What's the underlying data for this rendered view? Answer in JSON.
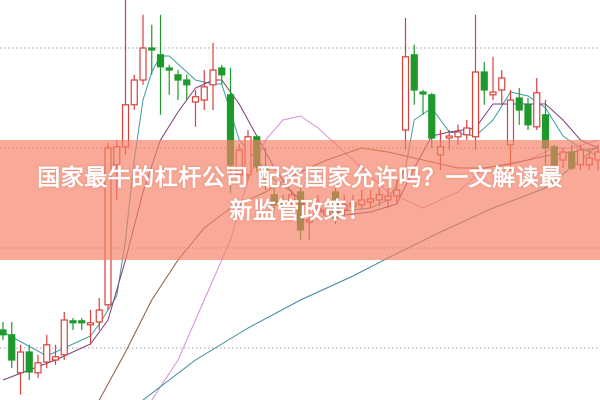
{
  "title": {
    "line1": "国家最牛的杠杆公司 配资国家允许吗？一文解读最",
    "line2": "新监管政策！"
  },
  "colors": {
    "up": "#d9403c",
    "down": "#1e9a2c",
    "grid": "#b8b8b8",
    "banner": "#f58066"
  },
  "chart_data": {
    "type": "candlestick",
    "title": "",
    "xlabel": "",
    "ylabel": "",
    "ylim": [
      0,
      100
    ],
    "grid": true,
    "candle_fields": [
      "open",
      "high",
      "low",
      "close"
    ],
    "candles": [
      [
        17.5,
        19.5,
        15,
        16.3
      ],
      [
        16.3,
        19.5,
        8,
        10
      ],
      [
        6.8,
        13.8,
        1.3,
        12
      ],
      [
        12,
        13.8,
        5,
        7
      ],
      [
        6.8,
        11.3,
        5.5,
        9.3
      ],
      [
        9.5,
        16.3,
        8,
        13.8
      ],
      [
        10,
        13.8,
        8.8,
        10.8
      ],
      [
        11.3,
        22,
        10,
        20
      ],
      [
        19.8,
        20.5,
        17.5,
        19.3
      ],
      [
        19.8,
        20.5,
        17.5,
        19.3
      ],
      [
        18.8,
        22.5,
        13.8,
        19.3
      ],
      [
        19.5,
        25.5,
        17.5,
        22.5
      ],
      [
        23.8,
        64.3,
        22.5,
        63
      ],
      [
        58.8,
        65,
        50,
        63.3
      ],
      [
        63.3,
        100,
        61.3,
        73.8
      ],
      [
        73.8,
        81.3,
        72.5,
        80
      ],
      [
        80,
        96.3,
        78.8,
        88
      ],
      [
        88,
        93.8,
        81.3,
        87.5
      ],
      [
        86.3,
        96.3,
        71.3,
        83.3
      ],
      [
        83,
        83.8,
        76.3,
        82.5
      ],
      [
        81.3,
        82.5,
        75,
        80
      ],
      [
        80,
        81.3,
        75,
        78.8
      ],
      [
        74.5,
        77.5,
        68.3,
        75.8
      ],
      [
        75,
        82.5,
        72.5,
        78.3
      ],
      [
        78.8,
        89.3,
        72.5,
        82.5
      ],
      [
        83,
        83.8,
        78.8,
        81.3
      ],
      [
        76.3,
        83,
        51.8,
        58.8
      ],
      [
        56.3,
        64,
        55,
        62.5
      ],
      [
        56.3,
        67.5,
        55,
        65.8
      ],
      [
        65.8,
        66.3,
        57,
        58.3
      ],
      [
        58.3,
        63,
        52.5,
        57.5
      ],
      [
        51.3,
        53,
        47.5,
        48.8
      ],
      [
        49,
        51.3,
        47.5,
        48.8
      ],
      [
        49.3,
        52.5,
        47.5,
        51.3
      ],
      [
        52,
        53.8,
        40,
        42.5
      ],
      [
        44.5,
        46.3,
        40,
        45
      ],
      [
        47,
        51.3,
        45,
        48
      ],
      [
        46.3,
        50,
        45,
        47.5
      ],
      [
        52,
        53,
        44,
        45.5
      ],
      [
        47.5,
        51.3,
        46.3,
        48.8
      ],
      [
        48.3,
        51.3,
        47,
        49.3
      ],
      [
        48.8,
        52.5,
        47.5,
        50
      ],
      [
        49.5,
        52.5,
        48,
        50.3
      ],
      [
        50,
        53,
        48.5,
        51.3
      ],
      [
        50,
        53,
        48,
        51
      ],
      [
        51,
        55,
        49,
        52.5
      ],
      [
        67.5,
        95.5,
        62.5,
        85.8
      ],
      [
        86.3,
        88.8,
        73.8,
        77.5
      ],
      [
        77,
        77.5,
        71.3,
        76.5
      ],
      [
        76.3,
        76.8,
        63,
        65.5
      ],
      [
        61.3,
        67.5,
        57.5,
        63.3
      ],
      [
        65.5,
        67.5,
        62.5,
        66
      ],
      [
        65.8,
        68.8,
        63.8,
        67
      ],
      [
        66.3,
        70,
        65,
        68
      ],
      [
        65.8,
        96.3,
        62.5,
        82
      ],
      [
        82,
        84.5,
        73.8,
        77.5
      ],
      [
        76.3,
        85.8,
        75,
        77
      ],
      [
        77.5,
        82.5,
        73.8,
        80.5
      ],
      [
        63.8,
        77.5,
        57.5,
        75
      ],
      [
        75.5,
        78,
        68.8,
        72.5
      ],
      [
        73.8,
        75.5,
        67.5,
        68.8
      ],
      [
        68.3,
        80.5,
        67.5,
        76.8
      ],
      [
        71.3,
        75,
        58.8,
        63
      ],
      [
        63.3,
        63.8,
        57.5,
        58.8
      ],
      [
        60,
        63,
        58,
        62
      ],
      [
        62,
        63.8,
        57.5,
        58
      ],
      [
        58.8,
        63.8,
        57.5,
        62.5
      ],
      [
        58.8,
        62.5,
        57.5,
        60.5
      ],
      [
        60,
        63.8,
        57.5,
        62
      ]
    ],
    "moving_averages": [
      {
        "color": "#3c9ca2",
        "points": [
          [
            0,
            17
          ],
          [
            5,
            11
          ],
          [
            10,
            16
          ],
          [
            11,
            19
          ],
          [
            13,
            26
          ],
          [
            14,
            40
          ],
          [
            15,
            60
          ],
          [
            16,
            75
          ],
          [
            17,
            82
          ],
          [
            18,
            86
          ],
          [
            19,
            86
          ],
          [
            20,
            84
          ],
          [
            22,
            80
          ],
          [
            24,
            79
          ],
          [
            25,
            79
          ],
          [
            26,
            72
          ],
          [
            27,
            65
          ],
          [
            29,
            60
          ],
          [
            31,
            55
          ],
          [
            33,
            52
          ],
          [
            35,
            48
          ],
          [
            38,
            47
          ],
          [
            42,
            48
          ],
          [
            44,
            50
          ],
          [
            46,
            58
          ],
          [
            47,
            70
          ],
          [
            49,
            73
          ],
          [
            51,
            67
          ],
          [
            54,
            66
          ],
          [
            56,
            70
          ],
          [
            58,
            77
          ],
          [
            60,
            76
          ],
          [
            62,
            73
          ],
          [
            64,
            66
          ],
          [
            66,
            63
          ],
          [
            68,
            61
          ]
        ]
      },
      {
        "color": "#7c3c7c",
        "points": [
          [
            0,
            5
          ],
          [
            6,
            10
          ],
          [
            10,
            14
          ],
          [
            12,
            20
          ],
          [
            14,
            35
          ],
          [
            16,
            52
          ],
          [
            18,
            65
          ],
          [
            20,
            72
          ],
          [
            22,
            78
          ],
          [
            24,
            80
          ],
          [
            25,
            80
          ],
          [
            27,
            74
          ],
          [
            29,
            66
          ],
          [
            31,
            58
          ],
          [
            33,
            52
          ],
          [
            35,
            48
          ],
          [
            38,
            46
          ],
          [
            42,
            47
          ],
          [
            45,
            49
          ],
          [
            47,
            58
          ],
          [
            49,
            66
          ],
          [
            51,
            67
          ],
          [
            54,
            68
          ],
          [
            56,
            74
          ],
          [
            58,
            74
          ],
          [
            60,
            74
          ],
          [
            62,
            74
          ],
          [
            64,
            70
          ],
          [
            66,
            65
          ],
          [
            68,
            63
          ]
        ]
      },
      {
        "color": "#d690d8",
        "points": [
          [
            17,
            0
          ],
          [
            20,
            10
          ],
          [
            23,
            25
          ],
          [
            26,
            40
          ],
          [
            28,
            55
          ],
          [
            30,
            65
          ],
          [
            32,
            70
          ],
          [
            34,
            71
          ],
          [
            36,
            68
          ],
          [
            40,
            60
          ],
          [
            44,
            52
          ],
          [
            48,
            48
          ],
          [
            52,
            52
          ],
          [
            55,
            58
          ],
          [
            60,
            60
          ],
          [
            63,
            63
          ],
          [
            65,
            63
          ],
          [
            68,
            65
          ]
        ]
      },
      {
        "color": "#8b5a3c",
        "points": [
          [
            11,
            0
          ],
          [
            14,
            12
          ],
          [
            17,
            25
          ],
          [
            20,
            35
          ],
          [
            23,
            43
          ],
          [
            26,
            48
          ],
          [
            30,
            52
          ],
          [
            33,
            56
          ],
          [
            37,
            60
          ],
          [
            41,
            63
          ],
          [
            44,
            62
          ],
          [
            48,
            60
          ],
          [
            52,
            58
          ],
          [
            55,
            58
          ],
          [
            58,
            59
          ],
          [
            62,
            61
          ],
          [
            65,
            62
          ],
          [
            68,
            63
          ]
        ]
      },
      {
        "color": "#3a8c9a",
        "points": [
          [
            16,
            0
          ],
          [
            22,
            10
          ],
          [
            28,
            18
          ],
          [
            34,
            25
          ],
          [
            40,
            31
          ],
          [
            44,
            35.5
          ],
          [
            50,
            42
          ],
          [
            56,
            48
          ],
          [
            62,
            53
          ],
          [
            68,
            63.5
          ]
        ]
      }
    ],
    "gridlines": [
      13,
      38,
      63,
      88
    ]
  }
}
